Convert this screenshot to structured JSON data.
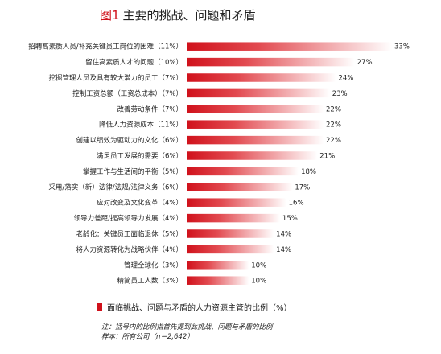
{
  "title": {
    "fig": "图1",
    "text": "主要的挑战、问题和矛盾"
  },
  "legend": {
    "label": "面临挑战、问题与矛盾的人力资源主管的比例（%）",
    "color": "#d0111b"
  },
  "notes": [
    "注：括号内的比例指首先提到此挑战、问题与矛盾的比例",
    "样本：所有公司（n＝2,642）"
  ],
  "chart_data": {
    "type": "bar",
    "orientation": "horizontal",
    "categories": [
      "招聘高素质人员/补充关键员工岗位的困难（11%）",
      "留住高素质人才的问题（10%）",
      "挖掘管理人员及具有较大潜力的员工（7%）",
      "控制工资总额（工资总成本）（7%）",
      "改善劳动条件（7%）",
      "降低人力资源成本（11%）",
      "创建以绩效为驱动力的文化（6%）",
      "满足员工发展的需要（6%）",
      "掌握工作与生活间的平衡（5%）",
      "采用/落实（新）法律/法规/法律义务（6%）",
      "应对改变及文化变革（4%）",
      "领导力差距/提高领导力发展（4%）",
      "老龄化：关键员工面临退休（5%）",
      "将人力资源转化为战略伙伴（4%）",
      "管理全球化（3%）",
      "精简员工人数（3%）"
    ],
    "values": [
      33,
      27,
      24,
      23,
      22,
      22,
      22,
      21,
      18,
      17,
      16,
      15,
      14,
      14,
      10,
      10
    ],
    "value_labels": [
      "33%",
      "27%",
      "24%",
      "23%",
      "22%",
      "22%",
      "22%",
      "21%",
      "18%",
      "17%",
      "16%",
      "15%",
      "14%",
      "14%",
      "10%",
      "10%"
    ],
    "xlim": [
      0,
      33
    ],
    "color": "#d0111b",
    "gradient": "red-to-white",
    "grid": false
  }
}
